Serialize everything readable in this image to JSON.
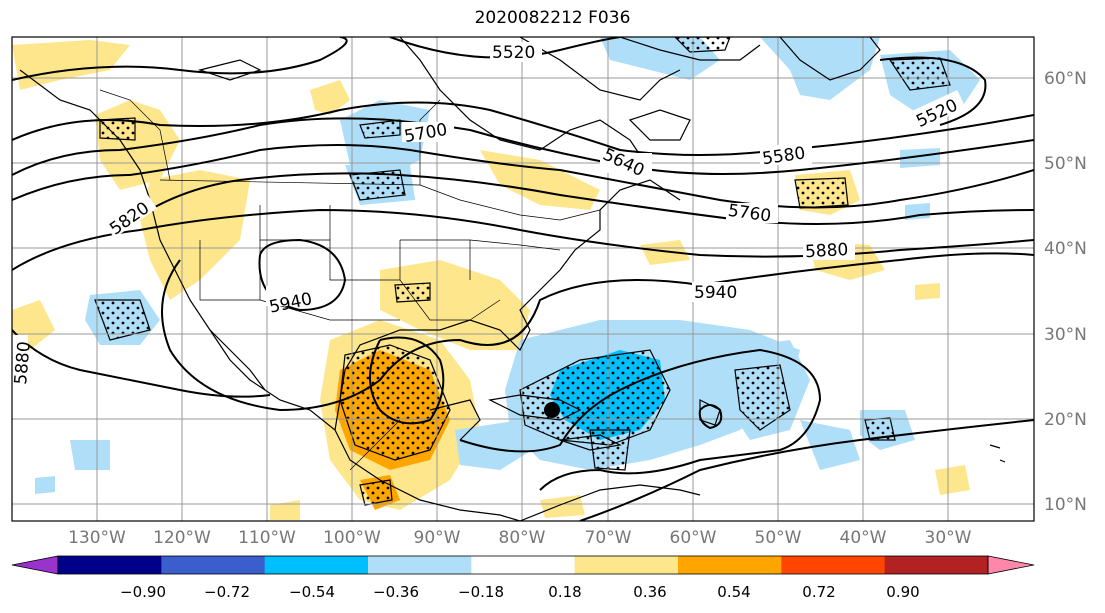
{
  "title": "2020082212 F036",
  "lat_labels": [
    "60°N",
    "50°N",
    "40°N",
    "30°N",
    "20°N",
    "10°N"
  ],
  "lon_labels": [
    "130°W",
    "120°W",
    "110°W",
    "100°W",
    "90°W",
    "80°W",
    "70°W",
    "60°W",
    "50°W",
    "40°W",
    "30°W"
  ],
  "contour_labels": [
    "5520",
    "5520",
    "5580",
    "5640",
    "5700",
    "5760",
    "5820",
    "5880",
    "5880",
    "5940",
    "5940"
  ],
  "colorbar": {
    "ticks": [
      "−0.90",
      "−0.72",
      "−0.54",
      "−0.36",
      "−0.18",
      "0.18",
      "0.36",
      "0.54",
      "0.72",
      "0.90"
    ],
    "colors": [
      "#9a32cd",
      "#00008b",
      "#3a5fcd",
      "#00bfff",
      "#afdff8",
      "#ffffff",
      "#fde68c",
      "#ffa500",
      "#ff4500",
      "#b22222",
      "#ff88aa"
    ]
  },
  "marker": "storm-center-dot"
}
